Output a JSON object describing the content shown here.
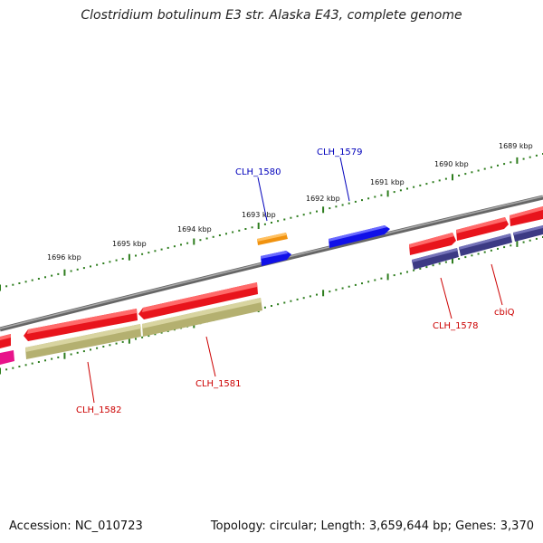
{
  "title": "Clostridium botulinum E3 str. Alaska E43, complete genome",
  "footer": {
    "accession": "Accession: NC_010723",
    "details": "Topology: circular; Length: 3,659,644 bp; Genes: 3,370"
  },
  "colors": {
    "backbone": "#7a7a7a",
    "ticks": "#2e7d1e",
    "red_gene": "#e8141c",
    "red_gene_light": "#ff6a6a",
    "blue_gene": "#1010e8",
    "blue_gene_light": "#6a6aff",
    "orange_gene": "#f0920f",
    "orange_gene_light": "#ffc060",
    "magenta_gene": "#e8148a",
    "olive_gene": "#b4b070",
    "olive_gene_light": "#d8d4a0",
    "navy_gene": "#3c3a84",
    "navy_gene_light": "#7472b8",
    "red_label": "#cc0000",
    "blue_label": "#0000bb"
  },
  "ticks": [
    {
      "label": "1696 kbp"
    },
    {
      "label": "1695 kbp"
    },
    {
      "label": "1694 kbp"
    },
    {
      "label": "1693 kbp"
    },
    {
      "label": "1692 kbp"
    },
    {
      "label": "1691 kbp"
    },
    {
      "label": "1690 kbp"
    },
    {
      "label": "1689 kbp"
    }
  ],
  "gene_labels": [
    {
      "label": "CLH_1580",
      "color": "blue"
    },
    {
      "label": "CLH_1579",
      "color": "blue"
    },
    {
      "label": "CLH_1578",
      "color": "red"
    },
    {
      "label": "cbiQ",
      "color": "red"
    },
    {
      "label": "CLH_1581",
      "color": "red"
    },
    {
      "label": "CLH_1582",
      "color": "red"
    }
  ]
}
